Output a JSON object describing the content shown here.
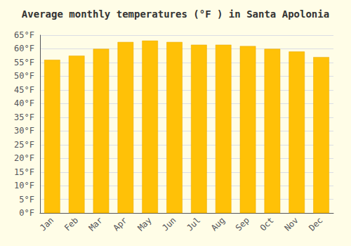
{
  "chart_data": {
    "type": "bar",
    "title": "Average monthly temperatures (°F ) in Santa Apolonia",
    "categories": [
      "Jan",
      "Feb",
      "Mar",
      "Apr",
      "May",
      "Jun",
      "Jul",
      "Aug",
      "Sep",
      "Oct",
      "Nov",
      "Dec"
    ],
    "values": [
      56.0,
      57.5,
      60.0,
      62.5,
      63.0,
      62.5,
      61.5,
      61.5,
      61.0,
      60.0,
      59.0,
      57.0
    ],
    "color": "#FFC107",
    "ylim": [
      0,
      65
    ],
    "yticks": [
      {
        "value": 0,
        "label": "0°F"
      },
      {
        "value": 5,
        "label": "5°F"
      },
      {
        "value": 10,
        "label": "10°F"
      },
      {
        "value": 15,
        "label": "15°F"
      },
      {
        "value": 20,
        "label": "20°F"
      },
      {
        "value": 25,
        "label": "25°F"
      },
      {
        "value": 30,
        "label": "30°F"
      },
      {
        "value": 35,
        "label": "35°F"
      },
      {
        "value": 40,
        "label": "40°F"
      },
      {
        "value": 45,
        "label": "45°F"
      },
      {
        "value": 50,
        "label": "50°F"
      },
      {
        "value": 55,
        "label": "55°F"
      },
      {
        "value": 60,
        "label": "60°F"
      },
      {
        "value": 65,
        "label": "65°F"
      }
    ],
    "grid": true
  }
}
